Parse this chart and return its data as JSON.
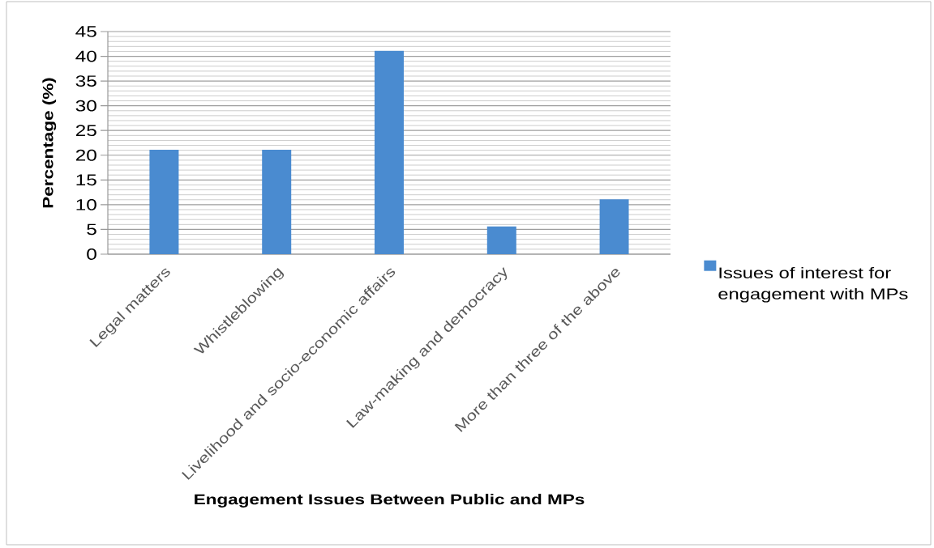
{
  "chart_data": {
    "type": "bar",
    "xlabel": "Engagement Issues Between Public and MPs",
    "ylabel": "Percentage (%)",
    "categories": [
      "Legal matters",
      "Whistleblowing",
      "Livelihood and socio-economic affairs",
      "Law-making and democracy",
      "More than three of the above"
    ],
    "series": [
      {
        "name": "Issues of interest for engagement with MPs",
        "color": "#4a8bd0",
        "values": [
          21.1,
          21.1,
          41.1,
          5.6,
          11.1
        ]
      }
    ],
    "ylim": [
      0,
      45
    ],
    "yticks": [
      0,
      5,
      10,
      15,
      20,
      25,
      30,
      35,
      40,
      45
    ],
    "grid": "y",
    "legend": "right"
  }
}
